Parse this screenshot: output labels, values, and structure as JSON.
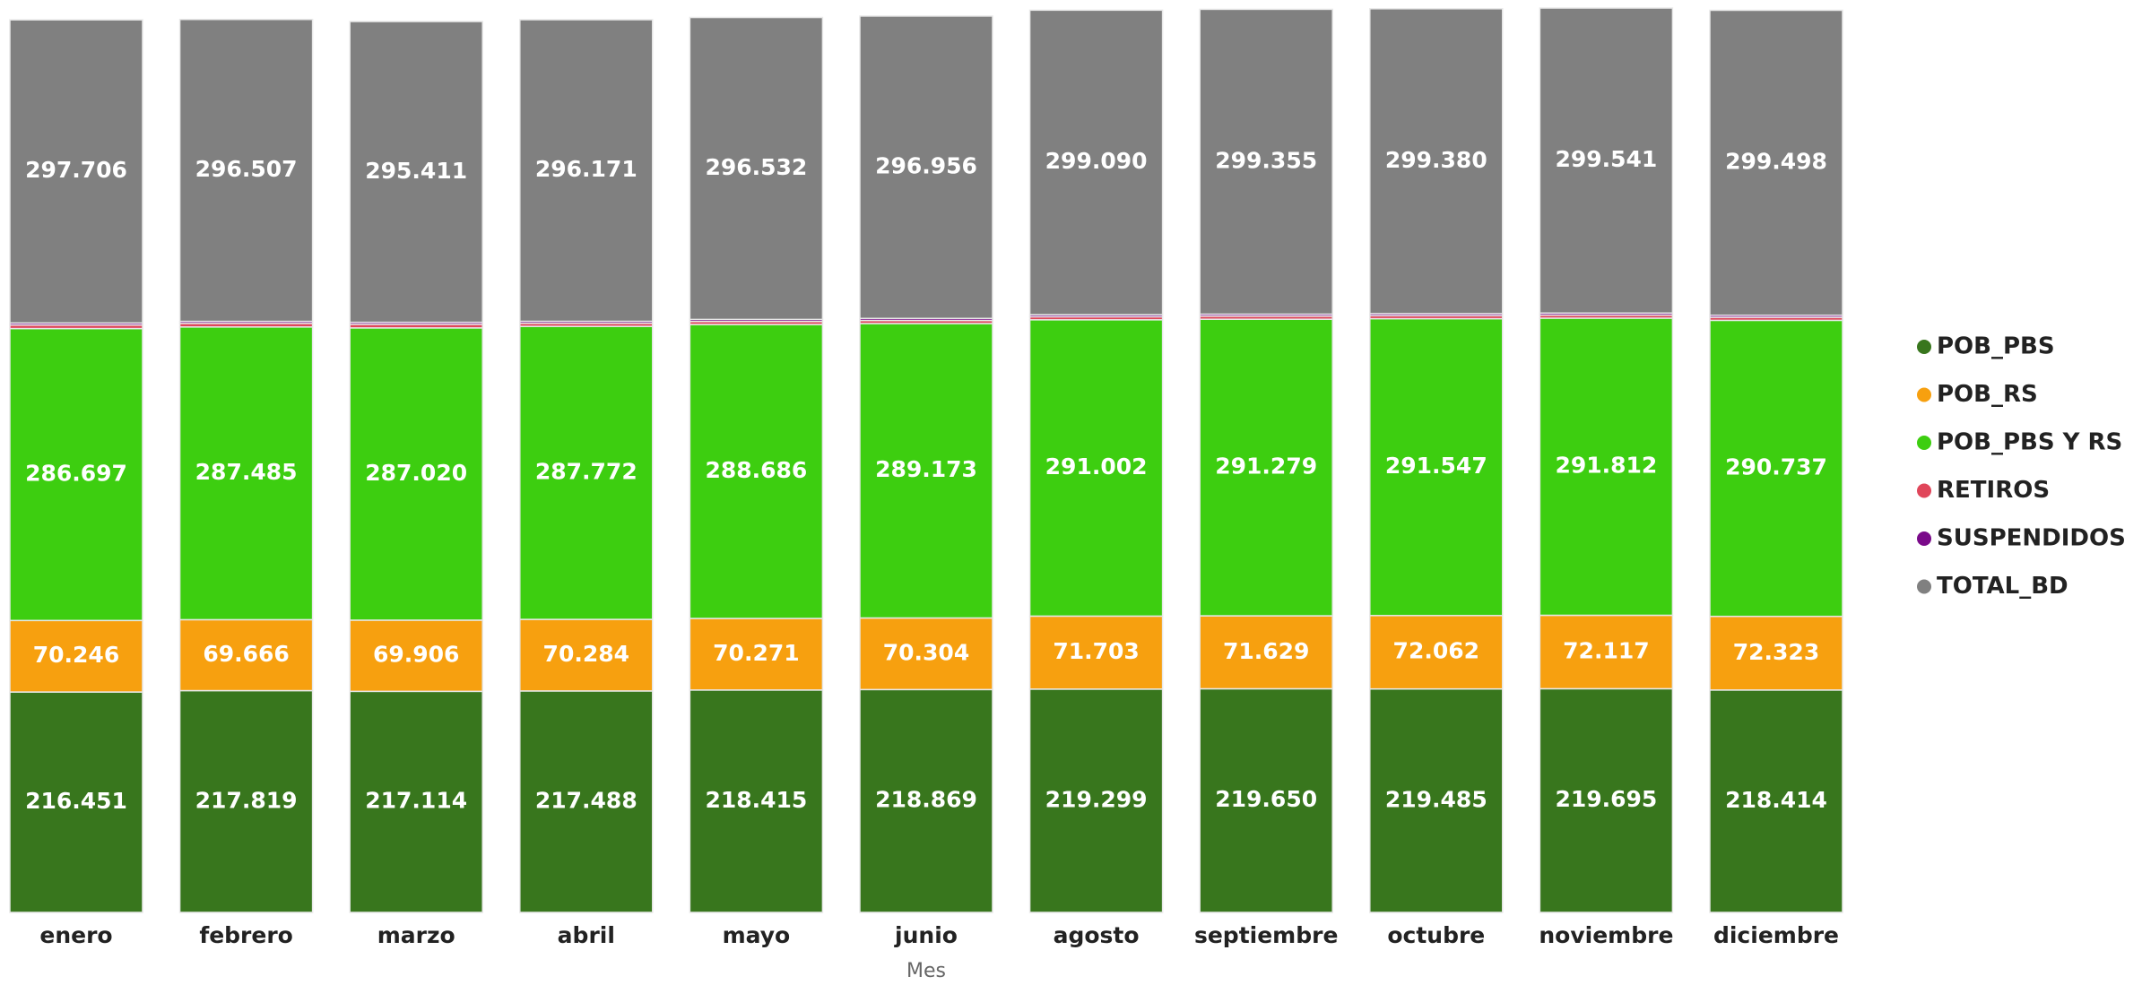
{
  "chart_data": {
    "type": "stacked_bar",
    "x_label": "Mes",
    "categories": [
      "enero",
      "febrero",
      "marzo",
      "abril",
      "mayo",
      "junio",
      "agosto",
      "septiembre",
      "octubre",
      "noviembre",
      "diciembre"
    ],
    "series": [
      {
        "name": "POB_PBS",
        "color": "#38761d",
        "values": [
          216451,
          217819,
          217114,
          217488,
          218415,
          218869,
          219299,
          219650,
          219485,
          219695,
          218414
        ],
        "value_labels": [
          "216.451",
          "217.819",
          "217.114",
          "217.488",
          "218.415",
          "218.869",
          "219.299",
          "219.650",
          "219.485",
          "219.695",
          "218.414"
        ]
      },
      {
        "name": "POB_RS",
        "color": "#f7a00f",
        "values": [
          70246,
          69666,
          69906,
          70284,
          70271,
          70304,
          71703,
          71629,
          72062,
          72117,
          72323
        ],
        "value_labels": [
          "70.246",
          "69.666",
          "69.906",
          "70.284",
          "70.271",
          "70.304",
          "71.703",
          "71.629",
          "72.062",
          "72.117",
          "72.323"
        ]
      },
      {
        "name": "POB_PBS Y RS",
        "color": "#3dce10",
        "values": [
          286697,
          287485,
          287020,
          287772,
          288686,
          289173,
          291002,
          291279,
          291547,
          291812,
          290737
        ],
        "value_labels": [
          "286.697",
          "287.485",
          "287.020",
          "287.772",
          "288.686",
          "289.173",
          "291.002",
          "291.279",
          "291.547",
          "291.812",
          "290.737"
        ]
      },
      {
        "name": "RETIROS",
        "color": "#e0465a",
        "values": [
          3500,
          3500,
          3500,
          3000,
          3000,
          3000,
          3000,
          3000,
          3000,
          3000,
          3000
        ]
      },
      {
        "name": "SUSPENDIDOS",
        "color": "#7a0a8a",
        "values": [
          2000,
          2000,
          2000,
          2000,
          2000,
          2000,
          2000,
          2000,
          2000,
          2000,
          2000
        ]
      },
      {
        "name": "TOTAL_BD",
        "color": "#808080",
        "values": [
          297706,
          296507,
          295411,
          296171,
          296532,
          296956,
          299090,
          299355,
          299380,
          299541,
          299498
        ],
        "value_labels": [
          "297.706",
          "296.507",
          "295.411",
          "296.171",
          "296.532",
          "296.956",
          "299.090",
          "299.355",
          "299.380",
          "299.541",
          "299.498"
        ]
      }
    ],
    "legend": "right"
  }
}
